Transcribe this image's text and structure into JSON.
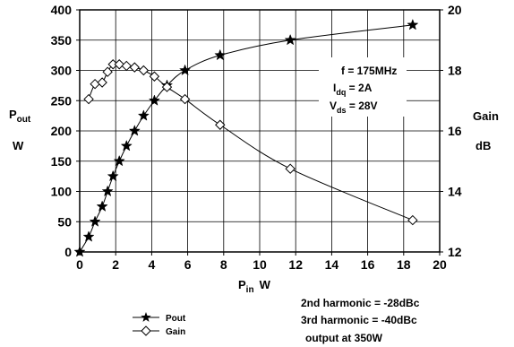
{
  "chart_data": {
    "type": "line",
    "x": {
      "label": "P",
      "label_sub": "in",
      "unit": "W",
      "lim": [
        0,
        20
      ],
      "ticks": [
        0,
        2,
        4,
        6,
        8,
        10,
        12,
        14,
        16,
        18,
        20
      ]
    },
    "y_left": {
      "label": "P",
      "label_sub": "out",
      "unit": "W",
      "lim": [
        0,
        400
      ],
      "ticks": [
        0,
        50,
        100,
        150,
        200,
        250,
        300,
        350,
        400
      ]
    },
    "y_right": {
      "label": "Gain",
      "unit": "dB",
      "lim": [
        12,
        20
      ],
      "ticks": [
        12,
        14,
        16,
        18,
        20
      ]
    },
    "grid": true,
    "series": [
      {
        "name": "Pout",
        "axis": "left",
        "marker": "star",
        "points": [
          [
            0,
            0
          ],
          [
            0.5,
            25
          ],
          [
            0.85,
            50
          ],
          [
            1.25,
            75
          ],
          [
            1.55,
            100
          ],
          [
            1.85,
            125
          ],
          [
            2.2,
            150
          ],
          [
            2.6,
            175
          ],
          [
            3.05,
            200
          ],
          [
            3.55,
            225
          ],
          [
            4.15,
            250
          ],
          [
            4.85,
            275
          ],
          [
            5.85,
            300
          ],
          [
            7.8,
            325
          ],
          [
            11.7,
            350
          ],
          [
            18.5,
            375
          ]
        ]
      },
      {
        "name": "Gain",
        "axis": "right",
        "marker": "diamond",
        "points": [
          [
            0.5,
            17.05
          ],
          [
            0.85,
            17.55
          ],
          [
            1.25,
            17.6
          ],
          [
            1.55,
            17.95
          ],
          [
            1.85,
            18.2
          ],
          [
            2.2,
            18.2
          ],
          [
            2.6,
            18.15
          ],
          [
            3.05,
            18.1
          ],
          [
            3.55,
            18.0
          ],
          [
            4.15,
            17.8
          ],
          [
            4.85,
            17.45
          ],
          [
            5.85,
            17.05
          ],
          [
            7.8,
            16.2
          ],
          [
            11.7,
            14.75
          ],
          [
            18.5,
            13.05
          ]
        ]
      }
    ],
    "annotations": {
      "box": {
        "freq": "f = 175MHz",
        "idq_main": "I",
        "idq_sub": "dq",
        "idq_value": " = 2A",
        "vds_main": "V",
        "vds_sub": "ds",
        "vds_value": " = 28V"
      },
      "harmonics": [
        "2nd harmonic = -28dBc",
        "3rd harmonic = -40dBc",
        "output at 350W"
      ]
    },
    "legend": {
      "placement": "bottom-left",
      "entries": [
        "Pout",
        "Gain"
      ]
    }
  }
}
